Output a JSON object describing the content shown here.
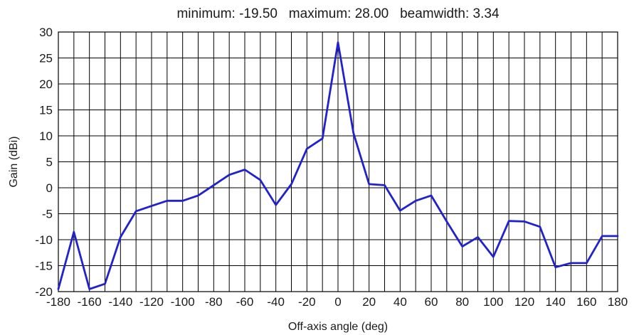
{
  "chart_data": {
    "type": "line",
    "title": "minimum: -19.50   maximum: 28.00   beamwidth: 3.34",
    "xlabel": "Off-axis angle (deg)",
    "ylabel": "Gain (dBi)",
    "xlim": [
      -180,
      180
    ],
    "ylim": [
      -20,
      30
    ],
    "xticks": [
      -180,
      -160,
      -140,
      -120,
      -100,
      -80,
      -60,
      -40,
      -20,
      0,
      20,
      40,
      60,
      80,
      100,
      120,
      140,
      160,
      180
    ],
    "yticks": [
      -20,
      -15,
      -10,
      -5,
      0,
      5,
      10,
      15,
      20,
      25,
      30
    ],
    "grid": true,
    "legend": "none",
    "series": [
      {
        "color": "#2222cc",
        "x": [
          -180,
          -170,
          -160,
          -150,
          -140,
          -130,
          -120,
          -110,
          -100,
          -90,
          -80,
          -70,
          -60,
          -50,
          -40,
          -30,
          -20,
          -10,
          0,
          10,
          20,
          30,
          40,
          50,
          60,
          70,
          80,
          90,
          100,
          110,
          120,
          130,
          140,
          150,
          160,
          170,
          180
        ],
        "y": [
          -19.5,
          -8.5,
          -19.5,
          -18.5,
          -9.5,
          -4.5,
          -3.5,
          -2.5,
          -2.5,
          -1.5,
          0.5,
          2.5,
          3.5,
          1.5,
          -3.3,
          0.7,
          7.5,
          9.5,
          28.0,
          10.5,
          0.7,
          0.5,
          -4.4,
          -2.5,
          -1.5,
          -6.5,
          -11.3,
          -9.5,
          -13.3,
          -6.4,
          -6.5,
          -7.5,
          -15.3,
          -14.5,
          -14.5,
          -9.3,
          -9.3
        ]
      }
    ]
  }
}
